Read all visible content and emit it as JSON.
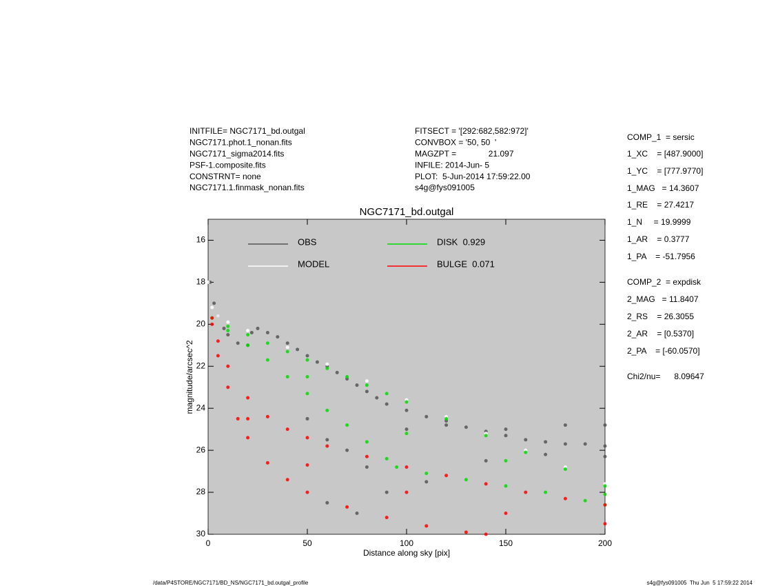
{
  "header": {
    "left": [
      "INITFILE= NGC7171_bd.outgal",
      "NGC7171.phot.1_nonan.fits",
      "NGC7171_sigma2014.fits",
      "PSF-1.composite.fits",
      "CONSTRNT= none",
      "NGC7171.1.finmask_nonan.fits"
    ],
    "middle": [
      "FITSECT = '[292:682,582:972]'",
      "CONVBOX = '50, 50  '",
      "MAGZPT =              21.097",
      "INFILE: 2014-Jun- 5",
      "PLOT:  5-Jun-2014 17:59:22.00",
      "s4g@fys091005"
    ]
  },
  "parameters": [
    "COMP_1  = sersic",
    "1_XC    = [487.9000]",
    "1_YC    = [777.9770]",
    "1_MAG   = 14.3607",
    "1_RE    = 27.4217",
    "1_N     = 19.9999",
    "1_AR    = 0.3777",
    "1_PA    = -51.7956",
    "COMP_2  = expdisk",
    "2_MAG   = 11.8407",
    "2_RS    = 26.3055",
    "2_AR    = [0.5370]",
    "2_PA    = [-60.0570]",
    "Chi2/nu=      8.09647"
  ],
  "footer": {
    "left": "/data/P4STORE/NGC7171/BD_NS/NGC7171_bd.outgal_profile",
    "right": "s4g@fys091005  Thu Jun  5 17:59:22 2014"
  },
  "chart_data": {
    "type": "scatter",
    "title": "NGC7171_bd.outgal",
    "xlabel": "Distance along sky [pix]",
    "ylabel": "magnitude/arcsec^2",
    "background": "#c8c8c8",
    "xlim": [
      0,
      200
    ],
    "xticks": [
      0,
      50,
      100,
      150,
      200
    ],
    "ylim": [
      30,
      15
    ],
    "yticks": [
      16,
      18,
      20,
      22,
      24,
      26,
      28,
      30
    ],
    "series": [
      {
        "name": "OBS",
        "color": "#555555",
        "x": [
          1,
          3,
          5,
          8,
          10,
          15,
          20,
          22,
          25,
          30,
          35,
          40,
          45,
          50,
          55,
          60,
          65,
          70,
          75,
          80,
          85,
          90,
          100,
          110,
          120,
          130,
          140,
          150,
          160,
          170,
          180,
          190,
          200,
          50,
          60,
          70,
          80,
          100,
          120,
          150,
          180,
          200,
          60,
          75,
          90,
          110,
          140,
          170,
          200
        ],
        "y": [
          18.0,
          19.0,
          19.6,
          20.2,
          20.5,
          20.9,
          21.0,
          20.4,
          20.2,
          20.4,
          20.6,
          20.9,
          21.2,
          21.5,
          21.8,
          22.0,
          22.3,
          22.6,
          22.9,
          23.2,
          23.5,
          23.8,
          24.1,
          24.4,
          24.6,
          24.9,
          25.1,
          25.3,
          25.5,
          25.6,
          25.7,
          25.7,
          25.8,
          24.5,
          25.5,
          26.0,
          26.8,
          25.0,
          24.8,
          25.0,
          24.8,
          24.8,
          28.5,
          29.0,
          28.0,
          27.5,
          26.5,
          26.2,
          26.3
        ]
      },
      {
        "name": "MODEL",
        "color": "#ffffff",
        "x": [
          0,
          2,
          5,
          10,
          20,
          40,
          60,
          80,
          100,
          120,
          140,
          160,
          180,
          200
        ],
        "y": [
          18.0,
          19.2,
          19.6,
          19.9,
          20.3,
          21.1,
          21.9,
          22.7,
          23.6,
          24.4,
          25.2,
          26.0,
          26.8,
          27.6
        ]
      },
      {
        "name": "DISK  0.929",
        "color": "#00dd00",
        "x": [
          2,
          10,
          20,
          30,
          40,
          50,
          60,
          70,
          80,
          90,
          100,
          120,
          140,
          160,
          180,
          200,
          10,
          20,
          30,
          40,
          50,
          60,
          70,
          80,
          90,
          95,
          110,
          130,
          150,
          170,
          190,
          200,
          50,
          100,
          150,
          200
        ],
        "y": [
          19.7,
          20.1,
          20.5,
          20.9,
          21.3,
          21.7,
          22.1,
          22.5,
          22.9,
          23.3,
          23.7,
          24.5,
          25.3,
          26.1,
          26.9,
          27.7,
          20.3,
          21.0,
          21.7,
          22.5,
          23.3,
          24.1,
          24.8,
          25.6,
          26.4,
          26.8,
          27.1,
          27.4,
          27.7,
          28.0,
          28.4,
          28.6,
          22.5,
          25.2,
          26.5,
          28.1
        ]
      },
      {
        "name": "BULGE  0.071",
        "color": "#ff0000",
        "x": [
          2,
          5,
          10,
          20,
          30,
          40,
          50,
          60,
          80,
          100,
          120,
          140,
          160,
          180,
          200,
          2,
          5,
          10,
          15,
          20,
          30,
          40,
          50,
          70,
          90,
          110,
          130,
          140,
          20,
          50,
          100,
          150,
          200
        ],
        "y": [
          19.7,
          20.8,
          22.0,
          23.5,
          24.4,
          25.0,
          25.4,
          25.8,
          26.3,
          26.8,
          27.2,
          27.6,
          28.0,
          28.3,
          28.6,
          20.0,
          21.5,
          23.0,
          24.5,
          25.4,
          26.6,
          27.4,
          28.0,
          28.7,
          29.2,
          29.6,
          29.9,
          30.0,
          24.5,
          26.7,
          28.0,
          29.0,
          29.5
        ]
      }
    ]
  }
}
